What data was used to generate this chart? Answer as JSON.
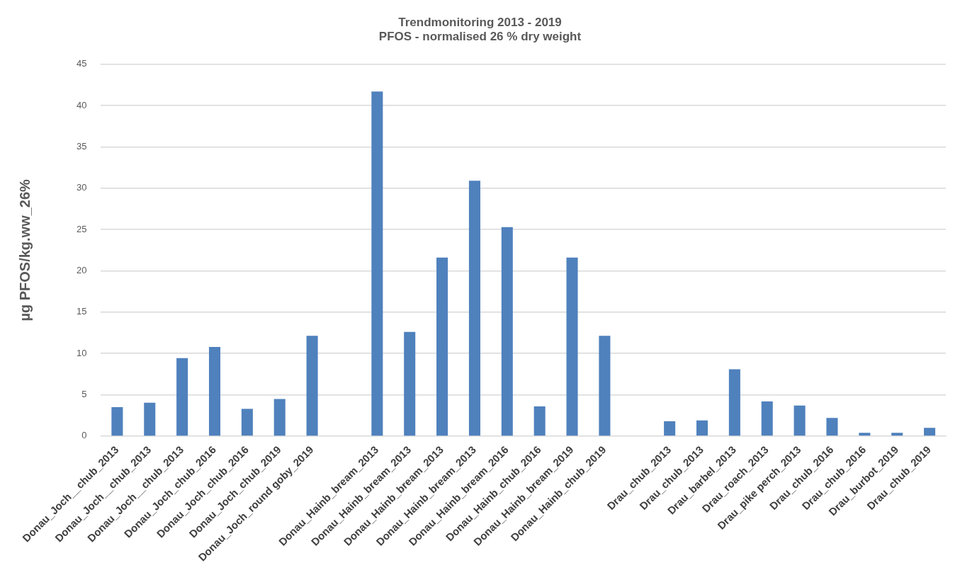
{
  "chart_data": {
    "type": "bar",
    "title": [
      "Trendmonitoring 2013 - 2019",
      "PFOS - normalised 26 % dry weight"
    ],
    "ylabel": "µg PFOS/kg.ww_26%",
    "categories": [
      "Donau_Joch__chub_2013",
      "Donau_Joch__chub_2013",
      "Donau_Joch__chub_2013",
      "Donau_Joch_chub_2016",
      "Donau_Joch_chub_2016",
      "Donau_Joch_chub_2019",
      "Donau_Joch_round goby_2019",
      null,
      "Donau_Hainb_bream_2013",
      "Donau_Hainb_bream_2013",
      "Donau_Hainb_bream_2013",
      "Donau_Hainb_bream_2013",
      "Donau_Hainb_bream_2016",
      "Donau_Hainb_chub_2016",
      "Donau_Hainb_bream_2019",
      "Donau_Hainb_chub_2019",
      null,
      "Drau_chub_2013",
      "Drau_chub_2013",
      "Drau_barbel_2013",
      "Drau_roach_2013",
      "Drau_pike perch_2013",
      "Drau_chub_2016",
      "Drau_chub_2016",
      "Drau_burbot_2019",
      "Drau_chub_2019"
    ],
    "values": [
      3.5,
      4.05,
      9.45,
      10.8,
      3.3,
      4.5,
      12.15,
      null,
      41.7,
      12.6,
      21.6,
      30.9,
      25.3,
      3.6,
      21.6,
      12.15,
      null,
      1.8,
      1.9,
      8.1,
      4.2,
      3.7,
      2.2,
      0.4,
      0.4,
      1.0
    ],
    "color": "#4f81bd",
    "ylim": [
      0,
      45
    ],
    "yticks": [
      0,
      5,
      10,
      15,
      20,
      25,
      30,
      35,
      40,
      45
    ],
    "grid": "y",
    "legend": false
  }
}
